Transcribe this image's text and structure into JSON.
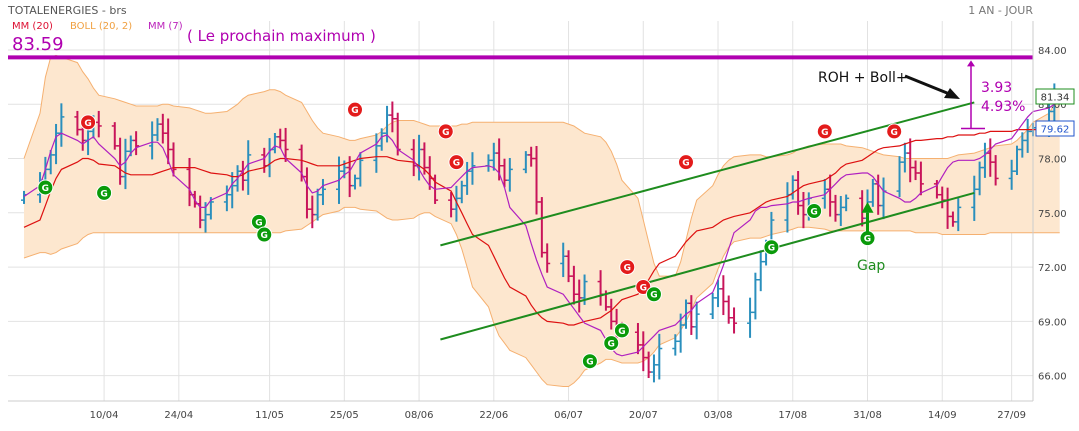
{
  "header": {
    "title": "TOTALENERGIES - brs",
    "period": "1 AN - JOUR"
  },
  "legend": [
    {
      "label": "MM (20)",
      "color": "#dd1133"
    },
    {
      "label": "BOLL (20, 2)",
      "color": "#f0a040"
    },
    {
      "label": "MM (7)",
      "color": "#bb22bb"
    }
  ],
  "colors": {
    "mm20": "#dd1111",
    "mm7": "#b020c0",
    "boll_fill": "#fde7cf",
    "boll_line": "#f5b070",
    "bar_up": "#2a8fbd",
    "bar_down": "#c8145a",
    "channel": "#1e8c1e",
    "level_line": "#b000b0",
    "gap_up": "#0a9a0a",
    "gap_down": "#e31b1b",
    "last_price": "#1e8c1e",
    "mm20_price": "#2255cc"
  },
  "annotations": {
    "level_value": "83.59",
    "level_text": "( Le prochain maximum )",
    "roh_label": "ROH + Boll+",
    "target_points": "3.93",
    "target_percent": "4.93%",
    "gap_label": "Gap",
    "gap_letter": "G"
  },
  "price_labels": {
    "last": "81.34",
    "mm20": "79.62"
  },
  "chart_data": {
    "type": "candlestick",
    "title": "TOTALENERGIES - brs",
    "ylim": [
      64.6,
      85.6
    ],
    "yticks": [
      "84.00",
      "81.00",
      "78.00",
      "75.00",
      "72.00",
      "69.00",
      "66.00"
    ],
    "x_range": [
      "2021-03-23",
      "2021-10-01"
    ],
    "xticks": [
      {
        "label": "10/04",
        "date": "2021-04-10"
      },
      {
        "label": "24/04",
        "date": "2021-04-24"
      },
      {
        "label": "11/05",
        "date": "2021-05-11"
      },
      {
        "label": "25/05",
        "date": "2021-05-25"
      },
      {
        "label": "08/06",
        "date": "2021-06-08"
      },
      {
        "label": "22/06",
        "date": "2021-06-22"
      },
      {
        "label": "06/07",
        "date": "2021-07-06"
      },
      {
        "label": "20/07",
        "date": "2021-07-20"
      },
      {
        "label": "03/08",
        "date": "2021-08-03"
      },
      {
        "label": "17/08",
        "date": "2021-08-17"
      },
      {
        "label": "31/08",
        "date": "2021-08-31"
      },
      {
        "label": "14/09",
        "date": "2021-09-14"
      },
      {
        "label": "27/09",
        "date": "2021-09-27"
      }
    ],
    "resistance_level": 83.59,
    "close": [
      76.0,
      76.8,
      77.4,
      78.2,
      79.4,
      80.3,
      79.6,
      79.0,
      79.5,
      80.0,
      79.8,
      78.7,
      77.0,
      78.4,
      79.0,
      78.7,
      79.3,
      79.9,
      79.4,
      78.5,
      77.4,
      76.0,
      75.5,
      74.6,
      74.9,
      75.6,
      76.0,
      76.5,
      77.3,
      76.8,
      78.2,
      77.6,
      78.5,
      79.2,
      79.0,
      78.5,
      77.0,
      75.2,
      74.9,
      76.0,
      76.3,
      77.3,
      77.5,
      76.5,
      76.9,
      77.9,
      78.7,
      79.4,
      80.4,
      80.2,
      78.5,
      77.6,
      78.5,
      77.5,
      76.9,
      75.7,
      75.2,
      75.8,
      76.5,
      77.3,
      77.6,
      77.9,
      78.3,
      77.6,
      76.8,
      77.4,
      78.2,
      78.0,
      75.6,
      72.8,
      72.2,
      72.6,
      71.5,
      70.5,
      70.3,
      71.2,
      70.5,
      69.8,
      69.0,
      68.7,
      68.4,
      67.7,
      67.0,
      66.2,
      66.6,
      67.5,
      67.9,
      68.8,
      70.0,
      68.7,
      69.4,
      70.3,
      70.8,
      70.1,
      69.2,
      68.9,
      69.5,
      71.3,
      72.3,
      73.3,
      74.6,
      76.0,
      76.8,
      75.4,
      74.9,
      75.8,
      76.3,
      75.6,
      74.9,
      75.3,
      75.8,
      74.7,
      75.6,
      76.6,
      75.4,
      76.2,
      77.8,
      78.3,
      77.5,
      77.2,
      76.6,
      76.0,
      75.7,
      74.8,
      74.5,
      75.3,
      76.3,
      77.5,
      78.3,
      77.8,
      76.9,
      77.3,
      78.5,
      79.0,
      79.5,
      79.7,
      80.6,
      81.4,
      81.34
    ],
    "mm20": [
      74.2,
      74.6,
      75.4,
      76.2,
      76.9,
      77.4,
      77.8,
      78.0,
      78.0,
      77.9,
      77.7,
      77.6,
      77.4,
      77.2,
      77.1,
      77.1,
      77.1,
      77.2,
      77.3,
      77.4,
      77.5,
      77.5,
      77.5,
      77.4,
      77.3,
      77.2,
      77.1,
      77.0,
      77.0,
      77.1,
      77.3,
      77.5,
      77.7,
      77.9,
      78.0,
      78.0,
      77.9,
      77.8,
      77.7,
      77.6,
      77.6,
      77.6,
      77.7,
      77.8,
      77.9,
      78.0,
      78.1,
      78.1,
      78.1,
      78.0,
      77.9,
      77.8,
      77.6,
      77.4,
      77.1,
      76.7,
      76.2,
      75.6,
      75.0,
      74.4,
      73.8,
      73.2,
      72.6,
      72.0,
      71.4,
      70.9,
      70.4,
      69.9,
      69.5,
      69.2,
      69.0,
      68.9,
      68.8,
      68.8,
      68.9,
      69.0,
      69.2,
      69.4,
      69.6,
      69.9,
      70.2,
      70.5,
      70.9,
      71.3,
      71.8,
      72.2,
      72.6,
      73.0,
      73.4,
      73.7,
      74.0,
      74.2,
      74.4,
      74.6,
      74.7,
      74.8,
      75.0,
      75.2,
      75.4,
      75.6,
      75.7,
      75.9,
      76.1,
      76.3,
      76.5,
      76.6,
      76.8,
      77.0,
      77.2,
      77.5,
      77.7,
      77.9,
      78.1,
      78.3,
      78.5,
      78.6,
      78.7,
      78.8,
      78.9,
      79.0,
      79.0,
      79.1,
      79.1,
      79.2,
      79.2,
      79.3,
      79.3,
      79.4,
      79.4,
      79.5,
      79.5,
      79.5,
      79.6,
      79.6,
      79.6,
      79.6,
      79.6,
      79.6,
      79.6
    ],
    "mm7": [
      75.9,
      76.5,
      77.4,
      78.4,
      79.2,
      79.4,
      79.0,
      78.8,
      79.0,
      79.2,
      78.8,
      78.0,
      77.6,
      77.8,
      78.3,
      78.6,
      78.9,
      78.9,
      78.6,
      77.9,
      77.1,
      76.3,
      75.7,
      75.3,
      75.3,
      75.7,
      76.1,
      76.6,
      76.9,
      77.3,
      77.7,
      78.0,
      78.4,
      78.7,
      78.6,
      78.0,
      77.2,
      76.5,
      76.1,
      76.2,
      76.5,
      76.8,
      77.1,
      77.3,
      77.8,
      78.3,
      78.8,
      79.2,
      79.3,
      79.0,
      78.5,
      77.9,
      77.4,
      76.9,
      76.5,
      76.3,
      76.4,
      76.7,
      77.0,
      77.3,
      77.5,
      77.6,
      77.5,
      77.2,
      76.4,
      75.3,
      74.3,
      73.3,
      72.4,
      71.6,
      70.9,
      70.5,
      70.1,
      69.7,
      69.3,
      68.9,
      68.5,
      68.0,
      67.5,
      67.2,
      67.1,
      67.3,
      67.6,
      67.9,
      68.2,
      68.5,
      68.8,
      69.1,
      69.4,
      69.6,
      70.0,
      70.6,
      71.3,
      72.1,
      73.0,
      73.9,
      74.6,
      75.1,
      75.3,
      75.3,
      75.4,
      75.5,
      75.6,
      75.6,
      75.7,
      75.8,
      76.0,
      76.3,
      76.6,
      76.9,
      77.1,
      77.2,
      77.2,
      77.0,
      76.6,
      76.2,
      75.8,
      75.6,
      75.6,
      75.8,
      76.1,
      76.5,
      77.0,
      77.5,
      77.8,
      77.9,
      77.9,
      78.0,
      78.2,
      78.5,
      78.8,
      79.1,
      79.5,
      79.9,
      80.3,
      80.6,
      80.8,
      81.0,
      81.2
    ],
    "boll_upper": [
      78.0,
      80.5,
      82.5,
      83.6,
      83.7,
      83.6,
      83.3,
      82.8,
      82.4,
      81.9,
      81.5,
      81.3,
      81.2,
      81.1,
      81.0,
      80.9,
      80.9,
      80.9,
      81.0,
      81.0,
      80.9,
      80.8,
      80.7,
      80.6,
      80.5,
      80.5,
      80.6,
      80.8,
      81.0,
      81.3,
      81.5,
      81.7,
      81.8,
      81.8,
      81.7,
      81.5,
      81.1,
      80.6,
      80.1,
      79.7,
      79.4,
      79.2,
      79.1,
      79.0,
      79.0,
      79.1,
      79.3,
      79.5,
      79.8,
      80.0,
      80.1,
      80.1,
      80.0,
      79.9,
      79.8,
      79.8,
      79.8,
      79.8,
      79.9,
      79.9,
      80.0,
      80.0,
      80.0,
      80.0,
      80.0,
      80.0,
      80.0,
      80.0,
      80.0,
      80.0,
      80.0,
      80.0,
      79.9,
      79.8,
      79.6,
      79.4,
      79.2,
      78.9,
      78.4,
      77.7,
      76.8,
      75.8,
      74.6,
      73.4,
      72.2,
      71.5,
      71.5,
      72.3,
      73.5,
      74.7,
      75.7,
      76.5,
      77.1,
      77.6,
      77.9,
      78.1,
      78.2,
      78.2,
      78.2,
      78.1,
      78.1,
      78.2,
      78.3,
      78.5,
      78.6,
      78.7,
      78.8,
      78.8,
      78.8,
      78.8,
      78.7,
      78.6,
      78.5,
      78.4,
      78.3,
      78.2,
      78.1,
      78.0,
      78.0,
      78.0,
      78.0,
      78.0,
      78.0,
      78.0,
      78.1,
      78.2,
      78.3,
      78.4,
      78.5,
      78.6,
      78.7,
      78.8,
      79.0,
      79.3,
      79.6,
      80.0,
      80.5,
      81.0,
      81.5
    ],
    "boll_lower": [
      72.5,
      72.8,
      72.8,
      72.7,
      72.8,
      73.0,
      73.3,
      73.6,
      73.8,
      73.9,
      73.9,
      73.9,
      73.9,
      73.9,
      73.9,
      73.9,
      73.9,
      73.9,
      73.9,
      73.9,
      73.9,
      73.9,
      73.9,
      73.9,
      73.9,
      73.9,
      73.9,
      73.9,
      73.9,
      73.9,
      73.9,
      73.9,
      73.9,
      73.9,
      73.9,
      74.0,
      74.1,
      74.3,
      74.5,
      74.7,
      74.9,
      75.1,
      75.3,
      75.3,
      75.3,
      75.2,
      75.1,
      74.9,
      74.7,
      74.6,
      74.6,
      74.7,
      74.9,
      75.0,
      75.0,
      74.8,
      74.4,
      73.8,
      73.0,
      72.0,
      70.9,
      69.8,
      68.9,
      68.2,
      67.8,
      67.4,
      67.0,
      66.6,
      66.2,
      65.8,
      65.5,
      65.4,
      65.4,
      65.6,
      65.9,
      66.3,
      66.7,
      66.9,
      66.9,
      66.8,
      66.7,
      66.7,
      66.8,
      67.0,
      67.3,
      67.7,
      68.1,
      68.5,
      69.0,
      69.6,
      70.3,
      71.1,
      71.9,
      72.6,
      73.1,
      73.4,
      73.6,
      73.6,
      73.6,
      73.7,
      73.8,
      74.0,
      74.1,
      74.2,
      74.2,
      74.2,
      74.1,
      74.0,
      74.0,
      74.0,
      74.0,
      74.0,
      74.0,
      74.0,
      74.0,
      74.0,
      74.0,
      74.0,
      74.0,
      73.9,
      73.9,
      73.9,
      73.8,
      73.8,
      73.8,
      73.8,
      73.8,
      73.8,
      73.8,
      73.9,
      73.9,
      73.9,
      73.9,
      73.9,
      73.9,
      73.9,
      73.9,
      73.9,
      73.9
    ],
    "channel_lines": [
      {
        "from": {
          "date": "2021-06-12",
          "value": 73.2
        },
        "to": {
          "date": "2021-09-20",
          "value": 81.1
        }
      },
      {
        "from": {
          "date": "2021-06-12",
          "value": 68.0
        },
        "to": {
          "date": "2021-09-20",
          "value": 76.1
        }
      }
    ],
    "gaps_down": [
      {
        "date": "2021-04-07",
        "value": 80.0
      },
      {
        "date": "2021-05-27",
        "value": 80.7
      },
      {
        "date": "2021-06-13",
        "value": 79.5
      },
      {
        "date": "2021-06-15",
        "value": 77.8
      },
      {
        "date": "2021-07-17",
        "value": 72.0
      },
      {
        "date": "2021-07-20",
        "value": 70.9
      },
      {
        "date": "2021-07-28",
        "value": 77.8
      },
      {
        "date": "2021-08-23",
        "value": 79.5
      },
      {
        "date": "2021-09-05",
        "value": 79.5
      }
    ],
    "gaps_up": [
      {
        "date": "2021-03-30",
        "value": 76.4
      },
      {
        "date": "2021-04-10",
        "value": 76.1
      },
      {
        "date": "2021-05-09",
        "value": 74.5
      },
      {
        "date": "2021-05-10",
        "value": 73.8
      },
      {
        "date": "2021-07-10",
        "value": 66.8
      },
      {
        "date": "2021-07-14",
        "value": 67.8
      },
      {
        "date": "2021-07-16",
        "value": 68.5
      },
      {
        "date": "2021-07-22",
        "value": 70.5
      },
      {
        "date": "2021-08-13",
        "value": 73.1
      },
      {
        "date": "2021-08-21",
        "value": 75.1
      },
      {
        "date": "2021-08-31",
        "value": 73.6
      }
    ]
  }
}
